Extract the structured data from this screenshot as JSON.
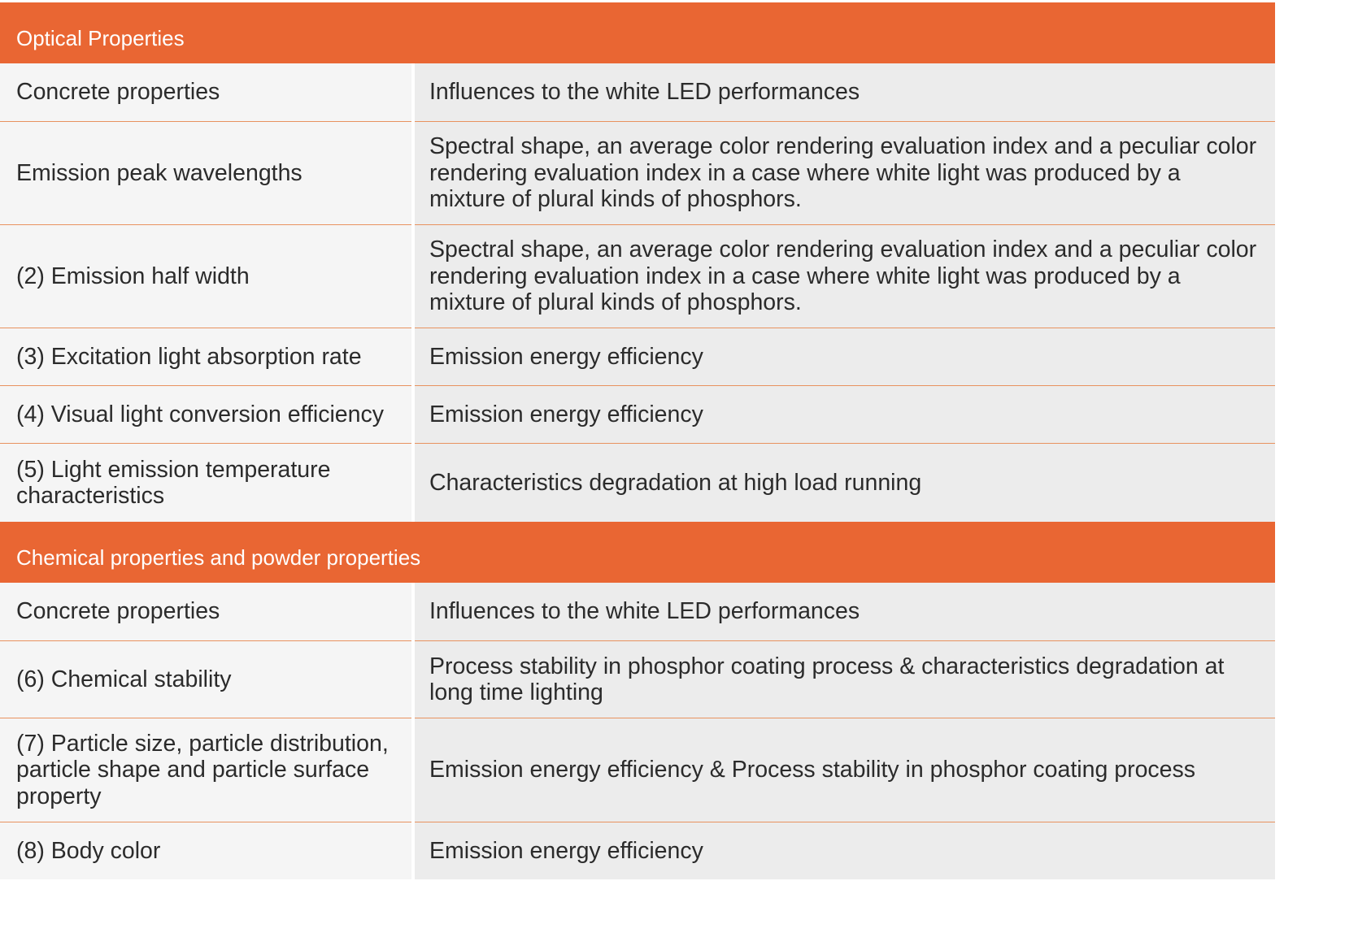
{
  "sections": [
    {
      "title": "Optical Properties",
      "rows": [
        {
          "property": "Concrete properties",
          "influence": "Influences to the white LED performances"
        },
        {
          "property": "Emission peak wavelengths",
          "influence": "Spectral shape, an average color rendering evaluation index and a peculiar color rendering evaluation index in a case where white light was produced by a mixture of plural kinds of phosphors."
        },
        {
          "property": "(2) Emission half width",
          "influence": "Spectral shape, an average color rendering evaluation index and a peculiar color rendering evaluation index in a case where white light was produced by a mixture of plural kinds of phosphors."
        },
        {
          "property": "(3) Excitation light absorption rate",
          "influence": "Emission energy efficiency"
        },
        {
          "property": "(4) Visual light conversion efficiency",
          "influence": "Emission energy efficiency"
        },
        {
          "property": "(5) Light emission temperature characteristics",
          "influence": "Characteristics degradation at high load running"
        }
      ]
    },
    {
      "title": "Chemical properties and powder properties",
      "rows": [
        {
          "property": "Concrete properties",
          "influence": "Influences to the white LED performances"
        },
        {
          "property": "(6) Chemical stability",
          "influence": "Process stability in phosphor coating process & characteristics degradation at long time lighting"
        },
        {
          "property": "(7) Particle size, particle distribution, particle shape and particle surface property",
          "influence": "Emission energy efficiency & Process stability in phosphor coating process"
        },
        {
          "property": "(8) Body color",
          "influence": "Emission energy efficiency"
        }
      ]
    }
  ]
}
